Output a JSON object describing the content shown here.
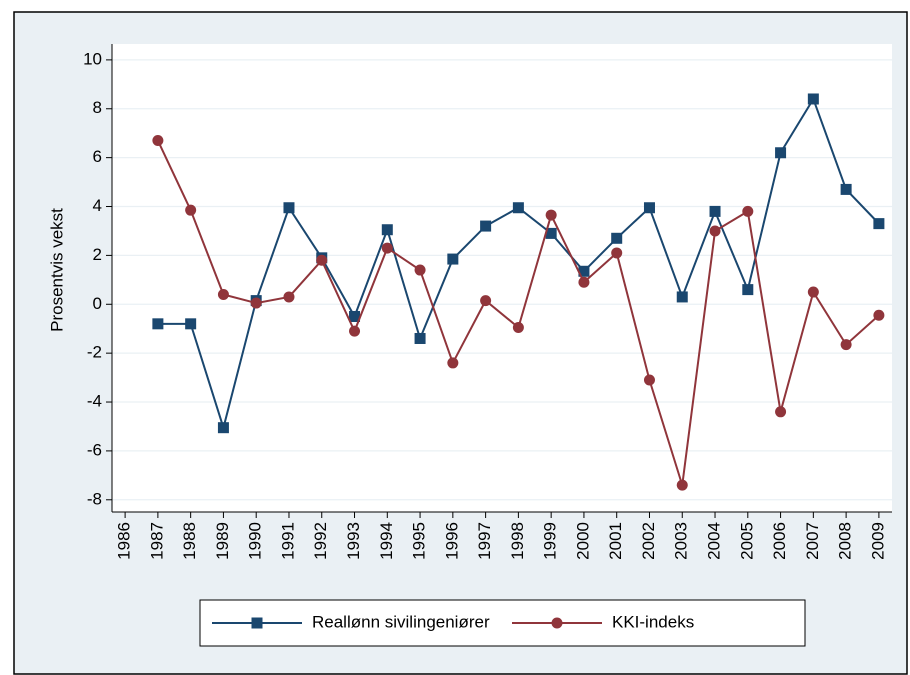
{
  "chart_data": {
    "type": "line",
    "y_label": "Prosentvis vekst",
    "x": [
      1986,
      1987,
      1988,
      1989,
      1990,
      1991,
      1992,
      1993,
      1994,
      1995,
      1996,
      1997,
      1998,
      1999,
      2000,
      2001,
      2002,
      2003,
      2004,
      2005,
      2006,
      2007,
      2008,
      2009
    ],
    "series": [
      {
        "name": "Reallønn sivilingeniører",
        "color": "#1a476f",
        "marker": "square",
        "values": [
          null,
          -0.8,
          -0.8,
          -5.05,
          0.15,
          3.95,
          1.9,
          -0.5,
          3.05,
          -1.4,
          1.85,
          3.2,
          3.95,
          2.9,
          1.35,
          2.7,
          3.95,
          0.3,
          3.8,
          0.6,
          6.2,
          8.4,
          4.7,
          3.3
        ]
      },
      {
        "name": "KKI-indeks",
        "color": "#90353b",
        "marker": "circle",
        "values": [
          null,
          6.7,
          3.85,
          0.4,
          0.05,
          0.3,
          1.8,
          -1.1,
          2.3,
          1.4,
          -2.4,
          0.15,
          -0.95,
          3.65,
          0.9,
          2.1,
          -3.1,
          -7.4,
          3.0,
          3.8,
          -4.4,
          0.5,
          -1.65,
          -0.45
        ]
      }
    ],
    "xlim": [
      1985.6,
      2009.4
    ],
    "xticks": [
      1986,
      1987,
      1988,
      1989,
      1990,
      1991,
      1992,
      1993,
      1994,
      1995,
      1996,
      1997,
      1998,
      1999,
      2000,
      2001,
      2002,
      2003,
      2004,
      2005,
      2006,
      2007,
      2008,
      2009
    ],
    "ylim": [
      -8.5,
      10.65
    ],
    "yticks": [
      -8,
      -6,
      -4,
      -2,
      0,
      2,
      4,
      6,
      8,
      10
    ],
    "grid": true,
    "legend": "bottom"
  }
}
